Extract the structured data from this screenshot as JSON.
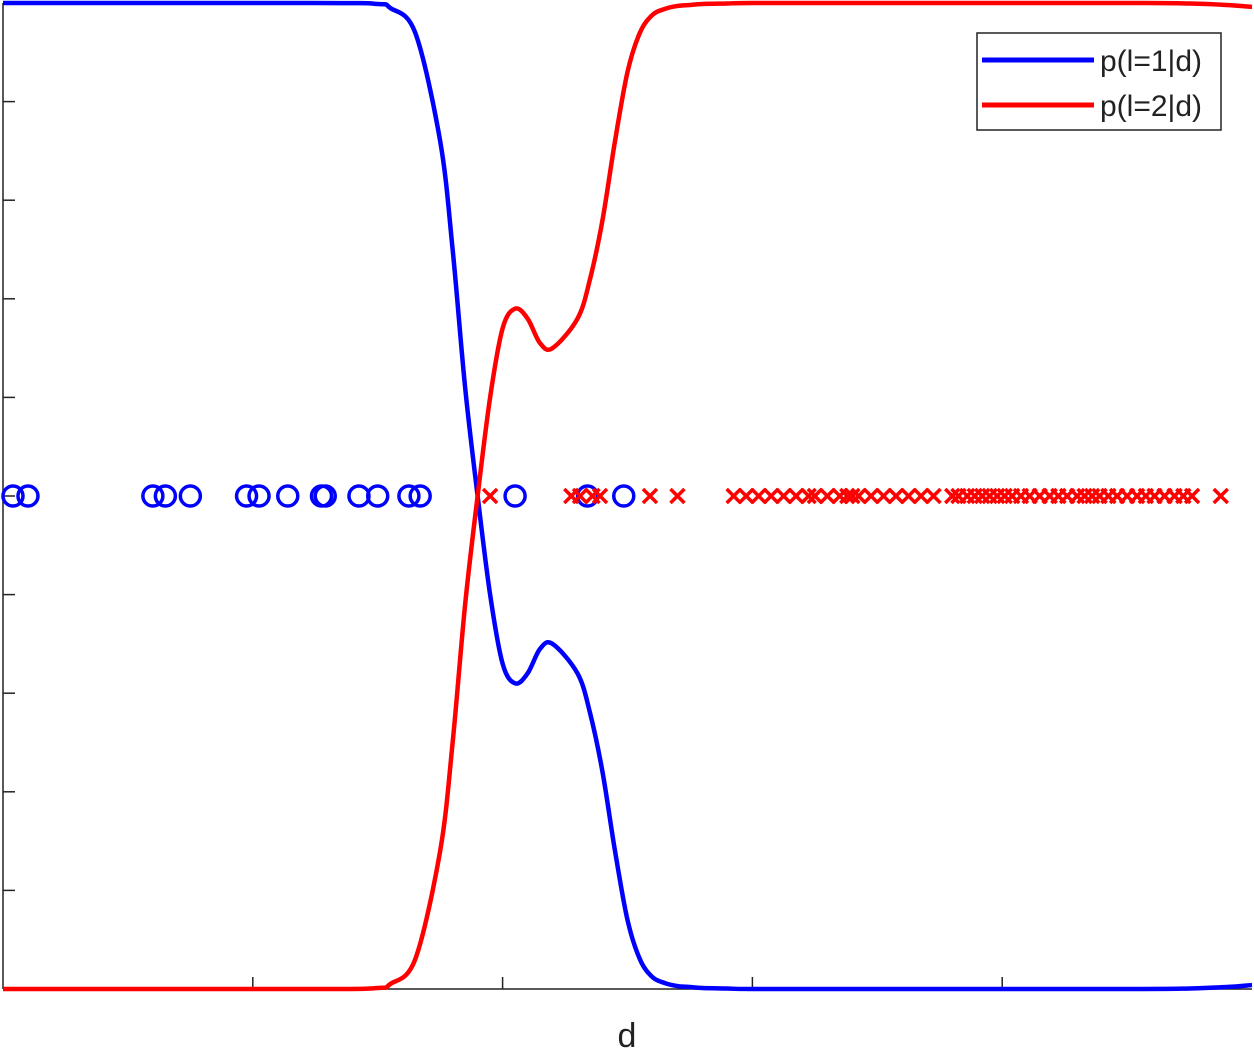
{
  "chart_data": {
    "type": "line",
    "xlabel": "d",
    "ylabel": "",
    "title": "",
    "xlim": [
      0,
      1
    ],
    "ylim": [
      0,
      1
    ],
    "grid": false,
    "legend_placement": "top-right",
    "series": [
      {
        "name": "p(l=1|d)",
        "color": "#0000ff",
        "x": [
          0.0,
          0.25,
          0.3,
          0.31,
          0.33,
          0.35,
          0.36,
          0.37,
          0.38,
          0.39,
          0.4,
          0.41,
          0.42,
          0.43,
          0.44,
          0.46,
          0.47,
          0.48,
          0.49,
          0.5,
          0.51,
          0.52,
          0.53,
          0.54,
          0.55,
          0.56,
          0.58,
          0.6,
          0.7,
          0.9,
          0.95,
          0.98,
          1.0
        ],
        "values": [
          1.0,
          1.0,
          0.999,
          0.995,
          0.97,
          0.86,
          0.75,
          0.61,
          0.5,
          0.4,
          0.33,
          0.31,
          0.32,
          0.345,
          0.35,
          0.32,
          0.28,
          0.22,
          0.14,
          0.07,
          0.03,
          0.012,
          0.006,
          0.003,
          0.002,
          0.001,
          0.0005,
          0.0,
          0.0,
          0.0,
          0.0005,
          0.002,
          0.004
        ]
      },
      {
        "name": "p(l=2|d)",
        "color": "#ff0000",
        "x": [
          0.0,
          0.25,
          0.3,
          0.31,
          0.33,
          0.35,
          0.36,
          0.37,
          0.38,
          0.39,
          0.4,
          0.41,
          0.42,
          0.43,
          0.44,
          0.46,
          0.47,
          0.48,
          0.49,
          0.5,
          0.51,
          0.52,
          0.53,
          0.54,
          0.55,
          0.56,
          0.58,
          0.6,
          0.7,
          0.9,
          0.95,
          0.98,
          1.0
        ],
        "values": [
          0.0,
          0.0,
          0.001,
          0.005,
          0.03,
          0.14,
          0.25,
          0.39,
          0.5,
          0.6,
          0.67,
          0.69,
          0.68,
          0.655,
          0.65,
          0.68,
          0.72,
          0.78,
          0.86,
          0.93,
          0.97,
          0.988,
          0.994,
          0.997,
          0.998,
          0.999,
          0.9995,
          1.0,
          1.0,
          1.0,
          0.9995,
          0.998,
          0.996
        ]
      }
    ],
    "scatter_series": [
      {
        "class": 1,
        "marker": "circle",
        "color": "#0000ff",
        "y": 0.5,
        "x": [
          0.008,
          0.02,
          0.12,
          0.13,
          0.15,
          0.195,
          0.205,
          0.228,
          0.255,
          0.258,
          0.285,
          0.3,
          0.325,
          0.334,
          0.41,
          0.468,
          0.497
        ]
      },
      {
        "class": 2,
        "marker": "x",
        "color": "#ff0000",
        "y": 0.5,
        "x": [
          0.39,
          0.455,
          0.462,
          0.472,
          0.478,
          0.518,
          0.54,
          0.585,
          0.595,
          0.605,
          0.615,
          0.625,
          0.635,
          0.645,
          0.65,
          0.66,
          0.67,
          0.676,
          0.68,
          0.685,
          0.695,
          0.705,
          0.715,
          0.725,
          0.735,
          0.745,
          0.76,
          0.765,
          0.772,
          0.778,
          0.784,
          0.79,
          0.796,
          0.802,
          0.808,
          0.815,
          0.822,
          0.83,
          0.838,
          0.845,
          0.852,
          0.86,
          0.866,
          0.872,
          0.878,
          0.885,
          0.892,
          0.9,
          0.908,
          0.915,
          0.922,
          0.93,
          0.938,
          0.945,
          0.952,
          0.975
        ]
      }
    ],
    "yticks": [
      0.0,
      0.1,
      0.2,
      0.3,
      0.4,
      0.5,
      0.6,
      0.7,
      0.8,
      0.9,
      1.0
    ],
    "xticks": [
      0.2,
      0.4,
      0.6,
      0.8
    ],
    "tick_labels_shown": false
  }
}
